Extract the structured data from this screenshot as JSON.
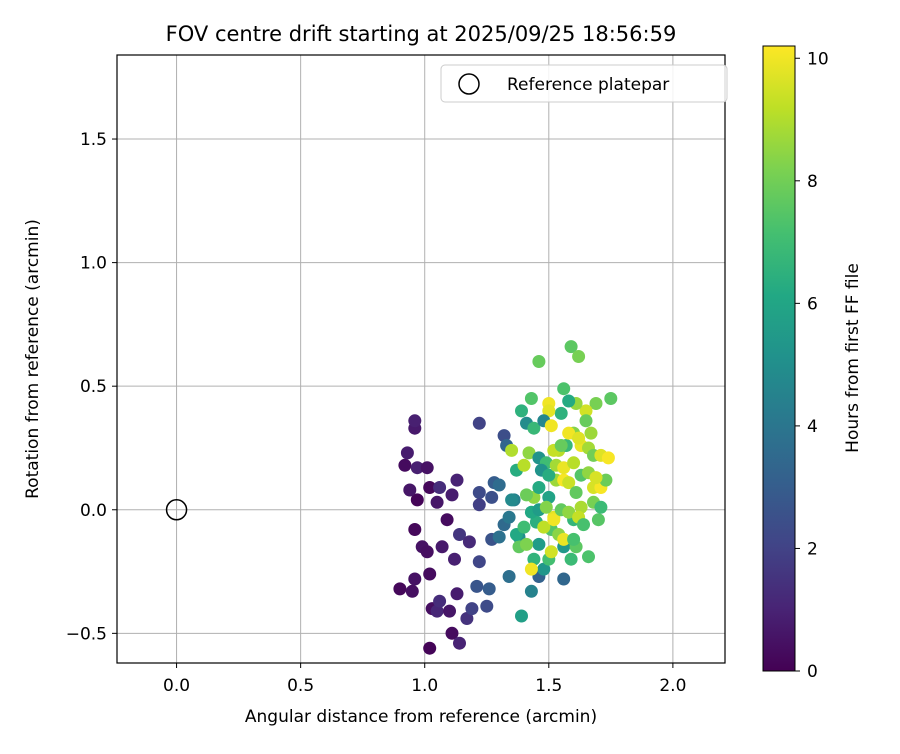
{
  "chart_data": {
    "type": "scatter",
    "title": "FOV centre drift starting at 2025/09/25 18:56:59",
    "xlabel": "Angular distance from reference (arcmin)",
    "ylabel": "Rotation from reference (arcmin)",
    "xlim": [
      -0.24,
      2.21
    ],
    "ylim": [
      -0.62,
      1.84
    ],
    "xticks": [
      0.0,
      0.5,
      1.0,
      1.5,
      2.0
    ],
    "xtick_labels": [
      "0.0",
      "0.5",
      "1.0",
      "1.5",
      "2.0"
    ],
    "yticks": [
      -0.5,
      0.0,
      0.5,
      1.0,
      1.5
    ],
    "ytick_labels": [
      "−0.5",
      "0.0",
      "0.5",
      "1.0",
      "1.5"
    ],
    "grid": true,
    "legend": {
      "position": "top-right",
      "label": "Reference platepar",
      "marker": "open-circle"
    },
    "reference_point": {
      "x": 0.0,
      "y": 0.0
    },
    "colorbar": {
      "label": "Hours from first FF file",
      "range": [
        0,
        10.2
      ],
      "colormap": "viridis",
      "ticks": [
        0,
        2,
        4,
        6,
        8,
        10
      ],
      "tick_labels": [
        "0",
        "2",
        "4",
        "6",
        "8",
        "10"
      ]
    },
    "points": [
      [
        1.02,
        -0.56,
        0.1
      ],
      [
        1.11,
        -0.5,
        0.3
      ],
      [
        1.14,
        -0.54,
        1.0
      ],
      [
        1.03,
        -0.4,
        0.4
      ],
      [
        0.9,
        -0.32,
        0.2
      ],
      [
        0.95,
        -0.33,
        0.4
      ],
      [
        0.96,
        -0.28,
        0.5
      ],
      [
        1.05,
        -0.41,
        1.1
      ],
      [
        1.06,
        -0.37,
        1.3
      ],
      [
        1.1,
        -0.41,
        0.6
      ],
      [
        1.13,
        -0.34,
        0.8
      ],
      [
        1.17,
        -0.44,
        1.5
      ],
      [
        1.19,
        -0.4,
        2.0
      ],
      [
        1.02,
        -0.26,
        0.3
      ],
      [
        1.07,
        -0.15,
        0.7
      ],
      [
        1.12,
        -0.2,
        0.9
      ],
      [
        1.14,
        -0.1,
        1.6
      ],
      [
        1.18,
        -0.13,
        1.2
      ],
      [
        1.22,
        -0.21,
        2.1
      ],
      [
        1.21,
        -0.31,
        2.7
      ],
      [
        1.26,
        -0.32,
        3.0
      ],
      [
        1.25,
        -0.39,
        2.3
      ],
      [
        0.96,
        -0.08,
        0.2
      ],
      [
        0.99,
        -0.15,
        0.5
      ],
      [
        1.01,
        -0.17,
        0.4
      ],
      [
        1.05,
        0.03,
        0.6
      ],
      [
        1.09,
        -0.04,
        0.3
      ],
      [
        1.11,
        0.06,
        0.8
      ],
      [
        1.13,
        0.12,
        1.0
      ],
      [
        0.97,
        0.04,
        0.1
      ],
      [
        0.94,
        0.08,
        0.6
      ],
      [
        0.92,
        0.18,
        0.3
      ],
      [
        0.97,
        0.17,
        0.9
      ],
      [
        1.01,
        0.17,
        0.5
      ],
      [
        0.93,
        0.23,
        0.8
      ],
      [
        0.96,
        0.33,
        0.7
      ],
      [
        0.96,
        0.36,
        0.9
      ],
      [
        1.02,
        0.09,
        0.2
      ],
      [
        1.06,
        0.09,
        1.3
      ],
      [
        1.22,
        0.35,
        2.0
      ],
      [
        1.22,
        0.07,
        2.3
      ],
      [
        1.22,
        0.02,
        1.9
      ],
      [
        1.27,
        0.05,
        2.5
      ],
      [
        1.28,
        0.11,
        3.0
      ],
      [
        1.3,
        0.1,
        3.6
      ],
      [
        1.32,
        0.3,
        2.4
      ],
      [
        1.33,
        0.26,
        3.3
      ],
      [
        1.27,
        -0.12,
        2.6
      ],
      [
        1.3,
        -0.11,
        3.8
      ],
      [
        1.32,
        -0.06,
        3.5
      ],
      [
        1.34,
        -0.03,
        4.1
      ],
      [
        1.36,
        0.04,
        4.4
      ],
      [
        1.34,
        -0.27,
        3.7
      ],
      [
        1.38,
        -0.11,
        5.0
      ],
      [
        1.39,
        -0.43,
        5.7
      ],
      [
        1.43,
        -0.33,
        4.5
      ],
      [
        1.46,
        -0.27,
        3.2
      ],
      [
        1.48,
        -0.24,
        5.3
      ],
      [
        1.44,
        -0.2,
        6.6
      ],
      [
        1.5,
        -0.2,
        7.1
      ],
      [
        1.46,
        -0.14,
        5.6
      ],
      [
        1.51,
        -0.08,
        7.4
      ],
      [
        1.56,
        -0.28,
        3.4
      ],
      [
        1.56,
        -0.15,
        5.4
      ],
      [
        1.59,
        -0.2,
        6.9
      ],
      [
        1.61,
        -0.15,
        7.6
      ],
      [
        1.66,
        -0.19,
        7.3
      ],
      [
        1.43,
        -0.24,
        10.0
      ],
      [
        1.51,
        -0.17,
        9.5
      ],
      [
        1.38,
        -0.15,
        7.7
      ],
      [
        1.41,
        -0.14,
        8.2
      ],
      [
        1.45,
        -0.05,
        6.4
      ],
      [
        1.48,
        -0.07,
        9.2
      ],
      [
        1.52,
        -0.03,
        9.8
      ],
      [
        1.54,
        -0.1,
        8.4
      ],
      [
        1.56,
        -0.12,
        9.9
      ],
      [
        1.6,
        -0.12,
        7.2
      ],
      [
        1.6,
        -0.04,
        6.7
      ],
      [
        1.7,
        -0.04,
        7.5
      ],
      [
        1.63,
        0.01,
        8.9
      ],
      [
        1.68,
        0.03,
        8.1
      ],
      [
        1.71,
        0.01,
        6.9
      ],
      [
        1.68,
        0.09,
        9.6
      ],
      [
        1.71,
        0.09,
        10.1
      ],
      [
        1.73,
        0.12,
        7.9
      ],
      [
        1.44,
        0.05,
        8.5
      ],
      [
        1.46,
        0.09,
        6.2
      ],
      [
        1.5,
        0.05,
        5.9
      ],
      [
        1.53,
        0.12,
        8.7
      ],
      [
        1.56,
        0.12,
        10.1
      ],
      [
        1.58,
        0.11,
        9.4
      ],
      [
        1.61,
        0.07,
        7.7
      ],
      [
        1.54,
        0.24,
        9.1
      ],
      [
        1.57,
        0.26,
        6.8
      ],
      [
        1.6,
        0.31,
        8.3
      ],
      [
        1.63,
        0.26,
        9.9
      ],
      [
        1.66,
        0.25,
        8.8
      ],
      [
        1.68,
        0.22,
        8.0
      ],
      [
        1.71,
        0.22,
        9.7
      ],
      [
        1.74,
        0.21,
        10.1
      ],
      [
        1.75,
        0.45,
        7.6
      ],
      [
        1.69,
        0.43,
        8.1
      ],
      [
        1.65,
        0.4,
        9.5
      ],
      [
        1.61,
        0.43,
        8.6
      ],
      [
        1.58,
        0.44,
        6.2
      ],
      [
        1.55,
        0.39,
        6.5
      ],
      [
        1.5,
        0.43,
        10.0
      ],
      [
        1.5,
        0.4,
        9.8
      ],
      [
        1.46,
        0.6,
        7.8
      ],
      [
        1.59,
        0.66,
        7.6
      ],
      [
        1.62,
        0.62,
        8.1
      ],
      [
        1.56,
        0.49,
        7.3
      ],
      [
        1.43,
        0.45,
        7.4
      ],
      [
        1.39,
        0.4,
        6.5
      ],
      [
        1.41,
        0.35,
        4.9
      ],
      [
        1.44,
        0.33,
        6.8
      ],
      [
        1.48,
        0.36,
        4.7
      ],
      [
        1.51,
        0.34,
        10.0
      ],
      [
        1.35,
        0.24,
        9.0
      ],
      [
        1.37,
        0.16,
        6.3
      ],
      [
        1.4,
        0.18,
        9.1
      ],
      [
        1.42,
        0.23,
        8.5
      ],
      [
        1.46,
        0.21,
        5.2
      ],
      [
        1.49,
        0.19,
        7.0
      ],
      [
        1.52,
        0.24,
        9.3
      ],
      [
        1.55,
        0.26,
        7.8
      ],
      [
        1.58,
        0.31,
        10.0
      ],
      [
        1.62,
        0.29,
        9.7
      ],
      [
        1.65,
        0.36,
        7.8
      ],
      [
        1.67,
        0.31,
        8.7
      ],
      [
        1.41,
        0.06,
        7.9
      ],
      [
        1.43,
        -0.01,
        6.1
      ],
      [
        1.46,
        0.0,
        5.6
      ],
      [
        1.49,
        0.01,
        8.3
      ],
      [
        1.52,
        -0.04,
        10.0
      ],
      [
        1.55,
        0.0,
        7.7
      ],
      [
        1.58,
        -0.01,
        8.5
      ],
      [
        1.62,
        -0.03,
        9.3
      ],
      [
        1.64,
        -0.06,
        7.2
      ],
      [
        1.35,
        0.04,
        4.8
      ],
      [
        1.37,
        -0.1,
        6.1
      ],
      [
        1.4,
        -0.07,
        7.0
      ],
      [
        1.47,
        0.16,
        5.2
      ],
      [
        1.5,
        0.14,
        6.3
      ],
      [
        1.53,
        0.18,
        8.8
      ],
      [
        1.56,
        0.17,
        9.9
      ],
      [
        1.6,
        0.19,
        9.1
      ],
      [
        1.63,
        0.14,
        7.4
      ],
      [
        1.66,
        0.15,
        8.5
      ],
      [
        1.69,
        0.13,
        9.6
      ]
    ]
  }
}
